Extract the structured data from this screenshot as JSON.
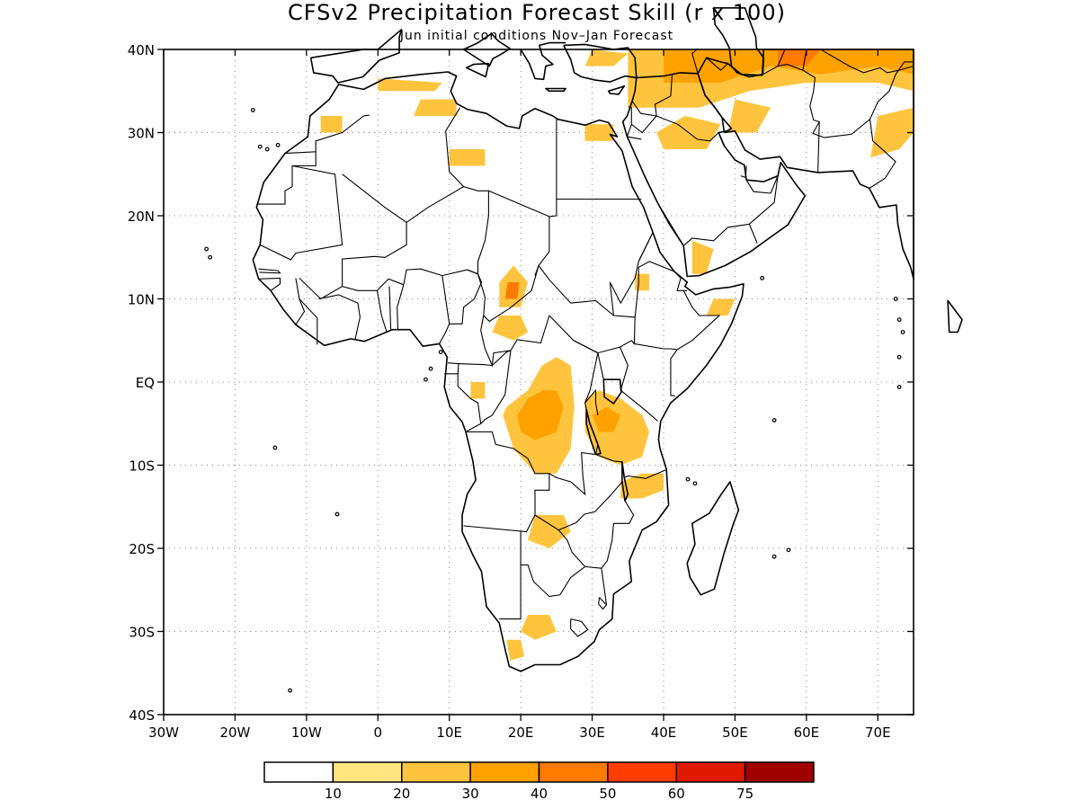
{
  "map": {
    "title": "CFSv2 Precipitation Forecast Skill (r x 100)",
    "subtitle": "Jun initial conditions  Nov–Jan Forecast",
    "region": "Africa and Middle East",
    "lon_range": [
      -30,
      75
    ],
    "lat_range": [
      -40,
      40
    ],
    "x_ticks": [
      {
        "lon": -30,
        "label": "30W"
      },
      {
        "lon": -20,
        "label": "20W"
      },
      {
        "lon": -10,
        "label": "10W"
      },
      {
        "lon": 0,
        "label": "0"
      },
      {
        "lon": 10,
        "label": "10E"
      },
      {
        "lon": 20,
        "label": "20E"
      },
      {
        "lon": 30,
        "label": "30E"
      },
      {
        "lon": 40,
        "label": "40E"
      },
      {
        "lon": 50,
        "label": "50E"
      },
      {
        "lon": 60,
        "label": "60E"
      },
      {
        "lon": 70,
        "label": "70E"
      }
    ],
    "y_ticks": [
      {
        "lat": 40,
        "label": "40N"
      },
      {
        "lat": 30,
        "label": "30N"
      },
      {
        "lat": 20,
        "label": "20N"
      },
      {
        "lat": 10,
        "label": "10N"
      },
      {
        "lat": 0,
        "label": "EQ"
      },
      {
        "lat": -10,
        "label": "10S"
      },
      {
        "lat": -20,
        "label": "20S"
      },
      {
        "lat": -30,
        "label": "30S"
      },
      {
        "lat": -40,
        "label": "40S"
      }
    ],
    "grid": true,
    "skill_patches": [
      {
        "name": "Central Congo / DRC",
        "level": 3,
        "points": [
          [
            18,
            -3
          ],
          [
            21,
            -1
          ],
          [
            23,
            2
          ],
          [
            25,
            3
          ],
          [
            27,
            2
          ],
          [
            27.5,
            -3
          ],
          [
            27,
            -8
          ],
          [
            25,
            -11
          ],
          [
            22,
            -11
          ],
          [
            19,
            -8
          ],
          [
            17.5,
            -4
          ]
        ]
      },
      {
        "name": "Central Congo core",
        "level": 4,
        "points": [
          [
            19.5,
            -4
          ],
          [
            21,
            -2
          ],
          [
            23,
            -1
          ],
          [
            25,
            -1
          ],
          [
            26,
            -3
          ],
          [
            25,
            -6
          ],
          [
            22,
            -7
          ],
          [
            20,
            -6
          ]
        ]
      },
      {
        "name": "Tanzania",
        "level": 3,
        "points": [
          [
            29,
            -2
          ],
          [
            31,
            -1
          ],
          [
            34,
            -2
          ],
          [
            37,
            -4
          ],
          [
            38,
            -6
          ],
          [
            37,
            -9
          ],
          [
            34,
            -10
          ],
          [
            31,
            -9
          ],
          [
            29,
            -6
          ]
        ]
      },
      {
        "name": "Tanzania core",
        "level": 4,
        "points": [
          [
            30,
            -4
          ],
          [
            32,
            -3
          ],
          [
            34,
            -4
          ],
          [
            33,
            -6
          ],
          [
            31,
            -6
          ]
        ]
      },
      {
        "name": "Northern Mozambique",
        "level": 3,
        "points": [
          [
            34,
            -12
          ],
          [
            37,
            -11
          ],
          [
            40,
            -11
          ],
          [
            40,
            -13
          ],
          [
            37,
            -14
          ],
          [
            34,
            -14
          ]
        ]
      },
      {
        "name": "Zambia",
        "level": 3,
        "points": [
          [
            22,
            -16
          ],
          [
            26,
            -16
          ],
          [
            27,
            -18
          ],
          [
            24,
            -20
          ],
          [
            21,
            -19
          ]
        ]
      },
      {
        "name": "Southern Africa interior",
        "level": 3,
        "points": [
          [
            21,
            -28
          ],
          [
            24,
            -28
          ],
          [
            25,
            -30
          ],
          [
            22,
            -31
          ],
          [
            20,
            -30
          ]
        ]
      },
      {
        "name": "Western Cape",
        "level": 3,
        "points": [
          [
            18,
            -31
          ],
          [
            20,
            -31
          ],
          [
            20.5,
            -33
          ],
          [
            18.5,
            -33.5
          ]
        ]
      },
      {
        "name": "Central African Republic",
        "level": 3,
        "points": [
          [
            16,
            6
          ],
          [
            19,
            5
          ],
          [
            21,
            6
          ],
          [
            20,
            8
          ],
          [
            17,
            8
          ]
        ]
      },
      {
        "name": "Chad south",
        "level": 3,
        "points": [
          [
            17,
            9
          ],
          [
            20,
            9
          ],
          [
            21,
            12
          ],
          [
            19,
            14
          ],
          [
            17,
            12
          ]
        ]
      },
      {
        "name": "Chad core",
        "level": 5,
        "points": [
          [
            17.8,
            10
          ],
          [
            19.5,
            10
          ],
          [
            19.8,
            12
          ],
          [
            18.2,
            12
          ]
        ]
      },
      {
        "name": "Gabon",
        "level": 3,
        "points": [
          [
            13,
            0
          ],
          [
            15,
            0
          ],
          [
            15,
            -2
          ],
          [
            13,
            -2
          ]
        ]
      },
      {
        "name": "Yemen",
        "level": 3,
        "points": [
          [
            44,
            13
          ],
          [
            46,
            13
          ],
          [
            47,
            16
          ],
          [
            44,
            17
          ]
        ]
      },
      {
        "name": "Somalia",
        "level": 3,
        "points": [
          [
            46,
            8
          ],
          [
            49,
            8
          ],
          [
            50,
            10
          ],
          [
            47,
            10
          ]
        ]
      },
      {
        "name": "Ethiopia west",
        "level": 3,
        "points": [
          [
            36,
            11
          ],
          [
            38,
            11
          ],
          [
            38,
            13
          ],
          [
            36,
            13
          ]
        ]
      },
      {
        "name": "Algeria coast",
        "level": 3,
        "points": [
          [
            0,
            35
          ],
          [
            8,
            35
          ],
          [
            9,
            36
          ],
          [
            0,
            36.5
          ]
        ]
      },
      {
        "name": "Tunisia/Libya",
        "level": 3,
        "points": [
          [
            5,
            32
          ],
          [
            11,
            32
          ],
          [
            11,
            34
          ],
          [
            6,
            34
          ]
        ]
      },
      {
        "name": "Morocco",
        "level": 3,
        "points": [
          [
            -8,
            30
          ],
          [
            -5,
            30
          ],
          [
            -5,
            32
          ],
          [
            -8,
            32
          ]
        ]
      },
      {
        "name": "Libya south",
        "level": 3,
        "points": [
          [
            10,
            26
          ],
          [
            15,
            26
          ],
          [
            15,
            28
          ],
          [
            10,
            28
          ]
        ]
      },
      {
        "name": "Egypt delta",
        "level": 3,
        "points": [
          [
            29,
            29
          ],
          [
            33,
            29
          ],
          [
            33,
            31
          ],
          [
            29,
            31
          ]
        ]
      },
      {
        "name": "Persia/Iran broad",
        "level": 3,
        "points": [
          [
            35,
            33
          ],
          [
            45,
            33
          ],
          [
            52,
            35
          ],
          [
            60,
            36
          ],
          [
            70,
            36
          ],
          [
            75,
            35
          ],
          [
            75,
            40
          ],
          [
            35,
            40
          ]
        ]
      },
      {
        "name": "Iran core",
        "level": 4,
        "points": [
          [
            40,
            36
          ],
          [
            48,
            36
          ],
          [
            55,
            38
          ],
          [
            62,
            37
          ],
          [
            70,
            38
          ],
          [
            75,
            37
          ],
          [
            75,
            40
          ],
          [
            40,
            40
          ]
        ]
      },
      {
        "name": "Caspian north core",
        "level": 5,
        "points": [
          [
            56,
            38
          ],
          [
            60,
            38
          ],
          [
            62,
            40
          ],
          [
            56,
            40
          ]
        ]
      },
      {
        "name": "Arabian north",
        "level": 3,
        "points": [
          [
            40,
            28
          ],
          [
            46,
            28
          ],
          [
            48,
            31
          ],
          [
            43,
            32
          ],
          [
            39,
            30
          ]
        ]
      },
      {
        "name": "Saudi peninsula east",
        "level": 3,
        "points": [
          [
            49,
            30
          ],
          [
            53,
            30
          ],
          [
            55,
            33
          ],
          [
            50,
            34
          ]
        ]
      },
      {
        "name": "Pakistan",
        "level": 3,
        "points": [
          [
            69,
            27
          ],
          [
            73,
            28
          ],
          [
            75,
            30
          ],
          [
            75,
            33
          ],
          [
            70,
            32
          ]
        ]
      },
      {
        "name": "Turkey coast",
        "level": 3,
        "points": [
          [
            29,
            38
          ],
          [
            33,
            38
          ],
          [
            35,
            39.5
          ],
          [
            30,
            40
          ]
        ]
      }
    ]
  },
  "colorbar": {
    "labels": [
      "10",
      "20",
      "30",
      "40",
      "50",
      "60",
      "75"
    ],
    "colors": [
      "#ffffff",
      "#ffe680",
      "#ffc43d",
      "#ffa200",
      "#ff7a00",
      "#ff3d00",
      "#e01a00",
      "#a00000"
    ]
  }
}
